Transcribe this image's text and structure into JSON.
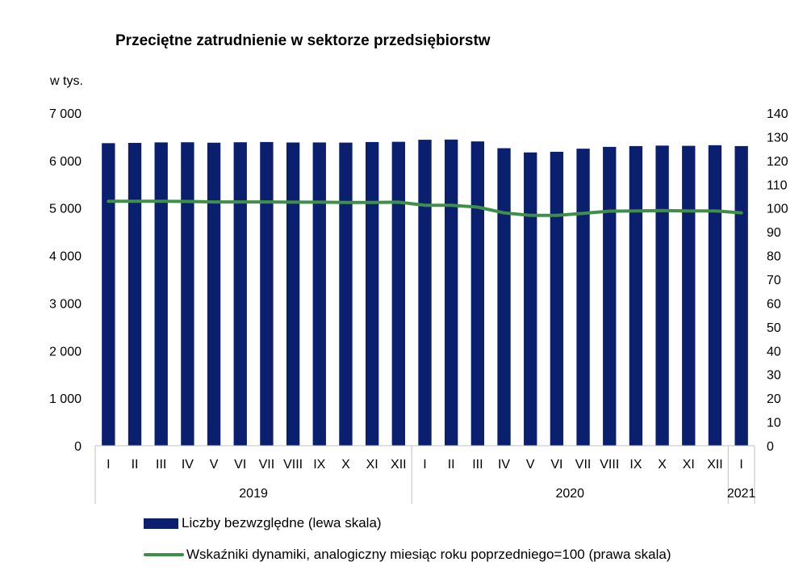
{
  "chart_data": {
    "type": "bar",
    "title": "Przeciętne zatrudnienie w sektorze przedsiębiorstw",
    "ylabel": "w tys.",
    "ylim": [
      0,
      7000
    ],
    "yticks": [
      "0",
      "1 000",
      "2 000",
      "3 000",
      "4 000",
      "5 000",
      "6 000",
      "7 000"
    ],
    "y2lim": [
      0,
      140
    ],
    "y2ticks": [
      "0",
      "10",
      "20",
      "30",
      "40",
      "50",
      "60",
      "70",
      "80",
      "90",
      "100",
      "110",
      "120",
      "130",
      "140"
    ],
    "categories": [
      "I",
      "II",
      "III",
      "IV",
      "V",
      "VI",
      "VII",
      "VIII",
      "IX",
      "X",
      "XI",
      "XII",
      "I",
      "II",
      "III",
      "IV",
      "V",
      "VI",
      "VII",
      "VIII",
      "IX",
      "X",
      "XI",
      "XII",
      "I"
    ],
    "year_groups": [
      {
        "label": "2019",
        "start": 0,
        "count": 12
      },
      {
        "label": "2020",
        "start": 12,
        "count": 12
      },
      {
        "label": "2021",
        "start": 24,
        "count": 1
      }
    ],
    "series": [
      {
        "name": "Liczby bezwzględne (lewa skala)",
        "type": "bar",
        "axis": "left",
        "color": "#0a1f6e",
        "values": [
          6366,
          6372,
          6382,
          6385,
          6376,
          6385,
          6390,
          6380,
          6381,
          6378,
          6390,
          6395,
          6438,
          6442,
          6403,
          6260,
          6171,
          6185,
          6250,
          6288,
          6305,
          6315,
          6310,
          6323,
          6305
        ]
      },
      {
        "name": "Wskaźniki dynamiki, analogiczny miesiąc roku poprzedniego=100 (prawa skala)",
        "type": "line",
        "axis": "right",
        "color": "#3f8f4a",
        "values": [
          102.9,
          102.9,
          102.9,
          102.8,
          102.6,
          102.6,
          102.6,
          102.5,
          102.5,
          102.4,
          102.4,
          102.5,
          101.2,
          101.2,
          100.4,
          98.0,
          96.9,
          96.9,
          97.8,
          98.7,
          98.8,
          99.0,
          98.8,
          98.8,
          98.0
        ]
      }
    ]
  }
}
